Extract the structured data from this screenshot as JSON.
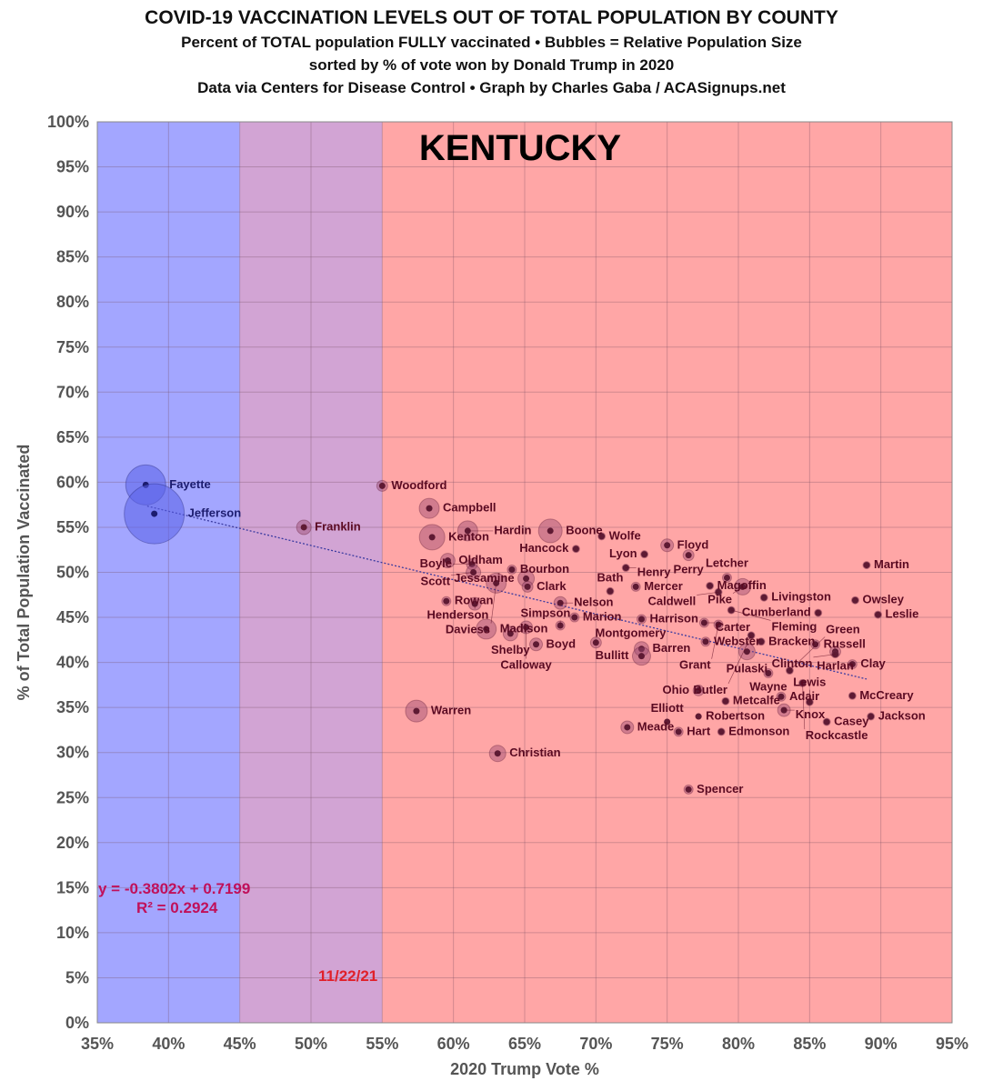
{
  "titles": {
    "line1": "COVID-19 VACCINATION LEVELS OUT OF TOTAL POPULATION BY COUNTY",
    "line2": "Percent of TOTAL population FULLY vaccinated • Bubbles = Relative Population Size",
    "line3": "sorted by % of vote won by Donald Trump in 2020",
    "line4": "Data via Centers for Disease Control • Graph by Charles Gaba / ACASignups.net"
  },
  "chart_data": {
    "type": "scatter",
    "title": "KENTUCKY",
    "xlabel": "2020 Trump Vote %",
    "ylabel": "% of Total Population Vaccinated",
    "xlim": [
      35,
      95
    ],
    "ylim": [
      0,
      100
    ],
    "xticks": [
      "35%",
      "40%",
      "45%",
      "50%",
      "55%",
      "60%",
      "65%",
      "70%",
      "75%",
      "80%",
      "85%",
      "90%",
      "95%"
    ],
    "yticks": [
      "0%",
      "5%",
      "10%",
      "15%",
      "20%",
      "25%",
      "30%",
      "35%",
      "40%",
      "45%",
      "50%",
      "55%",
      "60%",
      "65%",
      "70%",
      "75%",
      "80%",
      "85%",
      "90%",
      "95%",
      "100%"
    ],
    "grid": true,
    "bands": [
      {
        "from": 35,
        "to": 45,
        "color": "#a3a6ff"
      },
      {
        "from": 45,
        "to": 55,
        "color": "#d2a4d4"
      },
      {
        "from": 55,
        "to": 95,
        "color": "#ffa6a6"
      }
    ],
    "trendline": {
      "equation": "y = -0.3802x + 0.7199",
      "r2": "R² = 0.2924",
      "slope": -0.3802,
      "intercept": 0.7199
    },
    "date_note": "11/22/21",
    "colors": {
      "dem_point": "#1c1c6e",
      "rep_point": "#5e1a33",
      "rep_ring": "#9a4a70",
      "dem_ring": "#5a60e8",
      "equation": "#c0105a",
      "date": "#e0202a"
    },
    "points": [
      {
        "name": "Fayette",
        "x": 38.4,
        "y": 59.7,
        "pop": 22
      },
      {
        "name": "Jefferson",
        "x": 39.0,
        "y": 56.5,
        "pop": 33
      },
      {
        "name": "Franklin",
        "x": 49.5,
        "y": 55.0,
        "pop": 8
      },
      {
        "name": "Woodford",
        "x": 55.0,
        "y": 59.6,
        "pop": 6
      },
      {
        "name": "Campbell",
        "x": 58.3,
        "y": 57.1,
        "pop": 11
      },
      {
        "name": "Kenton",
        "x": 58.5,
        "y": 53.9,
        "pop": 14
      },
      {
        "name": "Hardin",
        "x": 61.0,
        "y": 54.6,
        "pop": 11
      },
      {
        "name": "Boone",
        "x": 66.8,
        "y": 54.6,
        "pop": 13
      },
      {
        "name": "Wolfe",
        "x": 70.4,
        "y": 54.0,
        "pop": 4
      },
      {
        "name": "Hancock",
        "x": 68.6,
        "y": 52.6,
        "pop": 4
      },
      {
        "name": "Lyon",
        "x": 73.4,
        "y": 52.0,
        "pop": 4
      },
      {
        "name": "Floyd",
        "x": 75.0,
        "y": 53.0,
        "pop": 7
      },
      {
        "name": "Perry",
        "x": 76.5,
        "y": 51.9,
        "pop": 6
      },
      {
        "name": "Henry",
        "x": 72.1,
        "y": 50.5,
        "pop": 4
      },
      {
        "name": "Letcher",
        "x": 79.2,
        "y": 49.4,
        "pop": 5
      },
      {
        "name": "Martin",
        "x": 89.0,
        "y": 50.8,
        "pop": 4
      },
      {
        "name": "Owsley",
        "x": 88.2,
        "y": 46.9,
        "pop": 4
      },
      {
        "name": "Leslie",
        "x": 89.8,
        "y": 45.3,
        "pop": 4
      },
      {
        "name": "Oldham",
        "x": 59.6,
        "y": 51.3,
        "pop": 8
      },
      {
        "name": "Boyle",
        "x": 61.3,
        "y": 50.9,
        "pop": 6
      },
      {
        "name": "Scott",
        "x": 61.4,
        "y": 50.0,
        "pop": 8
      },
      {
        "name": "Bourbon",
        "x": 64.1,
        "y": 50.3,
        "pop": 5
      },
      {
        "name": "Jessamine",
        "x": 65.1,
        "y": 49.3,
        "pop": 9
      },
      {
        "name": "Daviess",
        "x": 63.0,
        "y": 48.8,
        "pop": 11
      },
      {
        "name": "Clark",
        "x": 65.2,
        "y": 48.4,
        "pop": 6
      },
      {
        "name": "Rowan",
        "x": 59.5,
        "y": 46.8,
        "pop": 5
      },
      {
        "name": "Henderson",
        "x": 61.5,
        "y": 46.5,
        "pop": 7
      },
      {
        "name": "Nelson",
        "x": 67.5,
        "y": 46.6,
        "pop": 7
      },
      {
        "name": "Mercer",
        "x": 72.8,
        "y": 48.4,
        "pop": 5
      },
      {
        "name": "Bath",
        "x": 71.0,
        "y": 47.9,
        "pop": 4
      },
      {
        "name": "Magoffin",
        "x": 78.0,
        "y": 48.5,
        "pop": 4
      },
      {
        "name": "Pike",
        "x": 80.3,
        "y": 48.4,
        "pop": 9
      },
      {
        "name": "Caldwell",
        "x": 78.6,
        "y": 47.8,
        "pop": 4
      },
      {
        "name": "Livingston",
        "x": 81.8,
        "y": 47.2,
        "pop": 4
      },
      {
        "name": "Fleming",
        "x": 79.5,
        "y": 45.8,
        "pop": 4
      },
      {
        "name": "Cumberland",
        "x": 85.6,
        "y": 45.5,
        "pop": 4
      },
      {
        "name": "Madison",
        "x": 62.3,
        "y": 43.7,
        "pop": 11
      },
      {
        "name": "Calloway",
        "x": 65.1,
        "y": 43.9,
        "pop": 7
      },
      {
        "name": "Shelby",
        "x": 64.0,
        "y": 43.2,
        "pop": 8
      },
      {
        "name": "Boyd",
        "x": 65.8,
        "y": 42.0,
        "pop": 7
      },
      {
        "name": "Simpson",
        "x": 67.5,
        "y": 44.1,
        "pop": 5
      },
      {
        "name": "Marion",
        "x": 68.5,
        "y": 45.0,
        "pop": 5
      },
      {
        "name": "Harrison",
        "x": 73.2,
        "y": 44.8,
        "pop": 5
      },
      {
        "name": "Montgomery",
        "x": 70.0,
        "y": 42.2,
        "pop": 6
      },
      {
        "name": "Barren",
        "x": 73.2,
        "y": 41.5,
        "pop": 8
      },
      {
        "name": "Bullitt",
        "x": 73.2,
        "y": 40.7,
        "pop": 10
      },
      {
        "name": "Carter",
        "x": 77.6,
        "y": 44.4,
        "pop": 5
      },
      {
        "name": "Grant",
        "x": 78.6,
        "y": 44.2,
        "pop": 5
      },
      {
        "name": "Webster",
        "x": 77.7,
        "y": 42.3,
        "pop": 5
      },
      {
        "name": "Butler",
        "x": 80.9,
        "y": 43.0,
        "pop": 4
      },
      {
        "name": "Bracken",
        "x": 81.6,
        "y": 42.3,
        "pop": 4
      },
      {
        "name": "Russell",
        "x": 85.4,
        "y": 42.0,
        "pop": 5
      },
      {
        "name": "Harlan",
        "x": 86.8,
        "y": 41.2,
        "pop": 6
      },
      {
        "name": "Clinton",
        "x": 86.8,
        "y": 40.9,
        "pop": 4
      },
      {
        "name": "Clay",
        "x": 88.0,
        "y": 39.8,
        "pop": 5
      },
      {
        "name": "Pulaski",
        "x": 80.6,
        "y": 41.2,
        "pop": 9
      },
      {
        "name": "Wayne",
        "x": 82.1,
        "y": 38.8,
        "pop": 5
      },
      {
        "name": "Green",
        "x": 83.6,
        "y": 39.1,
        "pop": 4
      },
      {
        "name": "Rockcastle",
        "x": 84.5,
        "y": 37.7,
        "pop": 4
      },
      {
        "name": "Ohio",
        "x": 77.2,
        "y": 36.9,
        "pop": 6
      },
      {
        "name": "Metcalfe",
        "x": 79.1,
        "y": 35.7,
        "pop": 4
      },
      {
        "name": "Adair",
        "x": 83.0,
        "y": 36.2,
        "pop": 5
      },
      {
        "name": "Lewis",
        "x": 85.0,
        "y": 35.6,
        "pop": 4
      },
      {
        "name": "Knox",
        "x": 83.2,
        "y": 34.7,
        "pop": 7
      },
      {
        "name": "McCreary",
        "x": 88.0,
        "y": 36.3,
        "pop": 4
      },
      {
        "name": "Casey",
        "x": 86.2,
        "y": 33.4,
        "pop": 4
      },
      {
        "name": "Jackson",
        "x": 89.3,
        "y": 34.0,
        "pop": 4
      },
      {
        "name": "Robertson",
        "x": 77.2,
        "y": 34.0,
        "pop": 3
      },
      {
        "name": "Elliott",
        "x": 75.0,
        "y": 33.4,
        "pop": 3
      },
      {
        "name": "Hart",
        "x": 75.8,
        "y": 32.3,
        "pop": 5
      },
      {
        "name": "Edmonson",
        "x": 78.8,
        "y": 32.3,
        "pop": 4
      },
      {
        "name": "Meade",
        "x": 72.2,
        "y": 32.8,
        "pop": 7
      },
      {
        "name": "Warren",
        "x": 57.4,
        "y": 34.6,
        "pop": 12
      },
      {
        "name": "Christian",
        "x": 63.1,
        "y": 29.9,
        "pop": 9
      },
      {
        "name": "Spencer",
        "x": 76.5,
        "y": 25.9,
        "pop": 5
      }
    ]
  }
}
